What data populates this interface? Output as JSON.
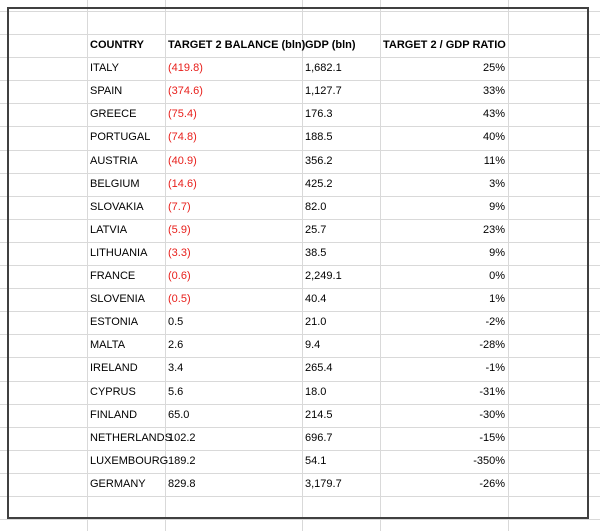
{
  "table": {
    "header": [
      "COUNTRY",
      "TARGET 2 BALANCE (bln)",
      "GDP (bln)",
      "TARGET 2 / GDP RATIO"
    ],
    "rows": [
      [
        "ITALY",
        "(419.8)",
        "1,682.1",
        "25%"
      ],
      [
        "SPAIN",
        "(374.6)",
        "1,127.7",
        "33%"
      ],
      [
        "GREECE",
        "(75.4)",
        "176.3",
        "43%"
      ],
      [
        "PORTUGAL",
        "(74.8)",
        "188.5",
        "40%"
      ],
      [
        "AUSTRIA",
        "(40.9)",
        "356.2",
        "11%"
      ],
      [
        "BELGIUM",
        "(14.6)",
        "425.2",
        "3%"
      ],
      [
        "SLOVAKIA",
        "(7.7)",
        "82.0",
        "9%"
      ],
      [
        "LATVIA",
        "(5.9)",
        "25.7",
        "23%"
      ],
      [
        "LITHUANIA",
        "(3.3)",
        "38.5",
        "9%"
      ],
      [
        "FRANCE",
        "(0.6)",
        "2,249.1",
        "0%"
      ],
      [
        "SLOVENIA",
        "(0.5)",
        "40.4",
        "1%"
      ],
      [
        "ESTONIA",
        "0.5",
        "21.0",
        "-2%"
      ],
      [
        "MALTA",
        "2.6",
        "9.4",
        "-28%"
      ],
      [
        "IRELAND",
        "3.4",
        "265.4",
        "-1%"
      ],
      [
        "CYPRUS",
        "5.6",
        "18.0",
        "-31%"
      ],
      [
        "FINLAND",
        "65.0",
        "214.5",
        "-30%"
      ],
      [
        "NETHERLANDS",
        "102.2",
        "696.7",
        "-15%"
      ],
      [
        "LUXEMBOURG",
        "189.2",
        "54.1",
        "-350%"
      ],
      [
        "GERMANY",
        "829.8",
        "3,179.7",
        "-26%"
      ]
    ]
  }
}
